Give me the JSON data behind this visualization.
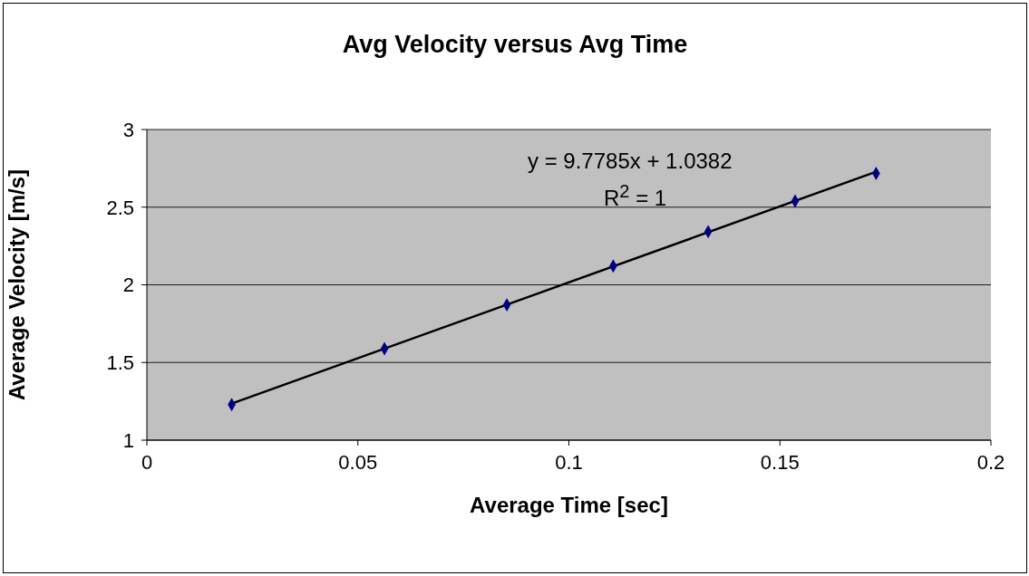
{
  "chart_data": {
    "type": "scatter",
    "title": "Avg Velocity versus Avg Time",
    "xlabel": "Average Time [sec]",
    "ylabel": "Average Velocity [m/s]",
    "x": [
      0.0201,
      0.0563,
      0.0853,
      0.1105,
      0.133,
      0.1536,
      0.1728
    ],
    "series": [
      {
        "color": "#000080",
        "values": [
          1.229,
          1.589,
          1.871,
          2.121,
          2.342,
          2.539,
          2.717
        ]
      },
      {
        "type": "line",
        "marker": "none",
        "color": "#000000",
        "x": [
          0.0201,
          0.1728
        ],
        "values": [
          1.235,
          2.728
        ]
      }
    ],
    "xlim": [
      0,
      0.2
    ],
    "xticks": [
      0,
      0.05,
      0.1,
      0.15,
      0.2
    ],
    "ylim": [
      1,
      3
    ],
    "yticks": [
      1,
      1.5,
      2,
      2.5,
      3
    ],
    "grid": "y",
    "marker": "diamond",
    "line_style": "solid",
    "annotations": [
      "y = 9.7785x + 1.0382",
      "R$^{2}$ = 1"
    ]
  }
}
